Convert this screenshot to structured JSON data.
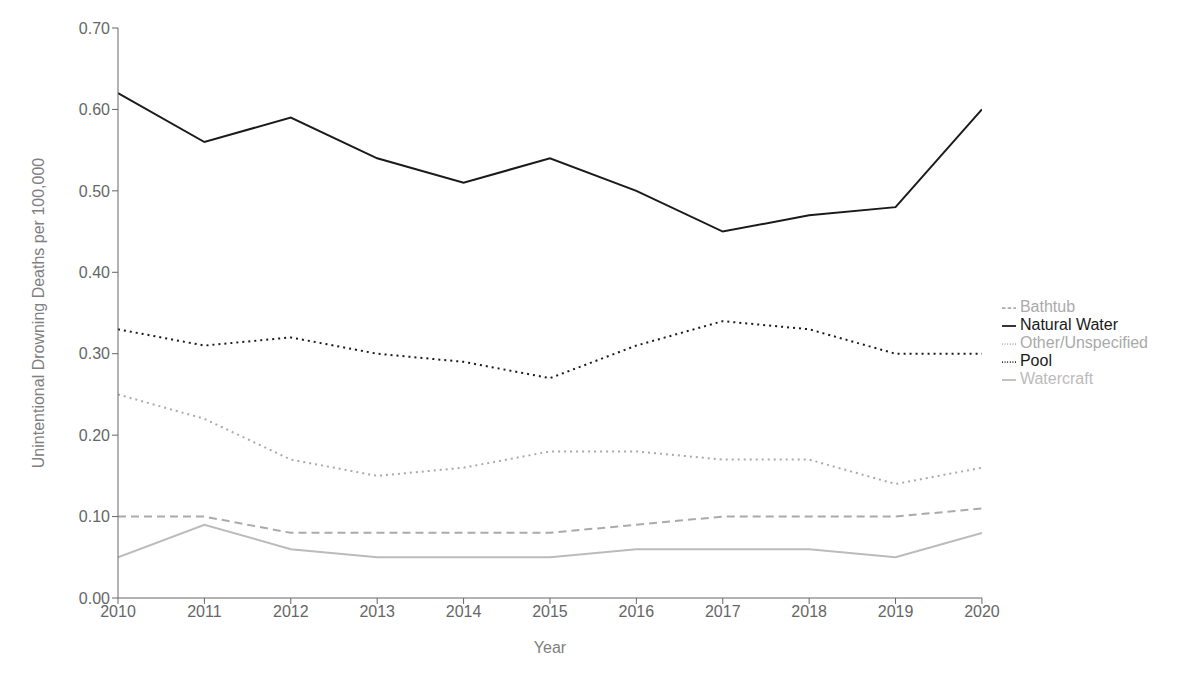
{
  "chart_data": {
    "type": "line",
    "x_label": "Year",
    "y_label": "Unintentional Drowning Deaths per 100,000",
    "x": [
      2010,
      2011,
      2012,
      2013,
      2014,
      2015,
      2016,
      2017,
      2018,
      2019,
      2020
    ],
    "xlim": [
      2010,
      2020
    ],
    "xticks": [
      2010,
      2011,
      2012,
      2013,
      2014,
      2015,
      2016,
      2017,
      2018,
      2019,
      2020
    ],
    "ylim": [
      0.0,
      0.7
    ],
    "yticks": [
      {
        "value": 0.0,
        "label": "0.00"
      },
      {
        "value": 0.1,
        "label": "0.10"
      },
      {
        "value": 0.2,
        "label": "0.20"
      },
      {
        "value": 0.3,
        "label": "0.30"
      },
      {
        "value": 0.4,
        "label": "0.40"
      },
      {
        "value": 0.5,
        "label": "0.50"
      },
      {
        "value": 0.6,
        "label": "0.60"
      },
      {
        "value": 0.7,
        "label": "0.70"
      }
    ],
    "grid": false,
    "legend": "right",
    "series": [
      {
        "name": "Bathtub",
        "color": "#aaaaaa",
        "line_style": "dashed",
        "values": [
          0.1,
          0.1,
          0.08,
          0.08,
          0.08,
          0.08,
          0.09,
          0.1,
          0.1,
          0.1,
          0.11
        ]
      },
      {
        "name": "Natural Water",
        "color": "#1a1a1a",
        "line_style": "solid",
        "values": [
          0.62,
          0.56,
          0.59,
          0.54,
          0.51,
          0.54,
          0.5,
          0.45,
          0.47,
          0.48,
          0.6
        ]
      },
      {
        "name": "Pool",
        "color": "#1a1a1a",
        "line_style": "dotted",
        "values": [
          0.33,
          0.31,
          0.32,
          0.3,
          0.29,
          0.27,
          0.31,
          0.34,
          0.33,
          0.3,
          0.3
        ]
      },
      {
        "name": "Watercraft",
        "color": "#bbbbbb",
        "line_style": "solid",
        "values": [
          0.05,
          0.09,
          0.06,
          0.05,
          0.05,
          0.05,
          0.06,
          0.06,
          0.06,
          0.05,
          0.08
        ]
      },
      {
        "name": "Other/Unspecified",
        "color": "#aaaaaa",
        "line_style": "dotted",
        "values": [
          0.25,
          0.22,
          0.17,
          0.15,
          0.16,
          0.18,
          0.18,
          0.17,
          0.17,
          0.14,
          0.16
        ]
      }
    ]
  }
}
